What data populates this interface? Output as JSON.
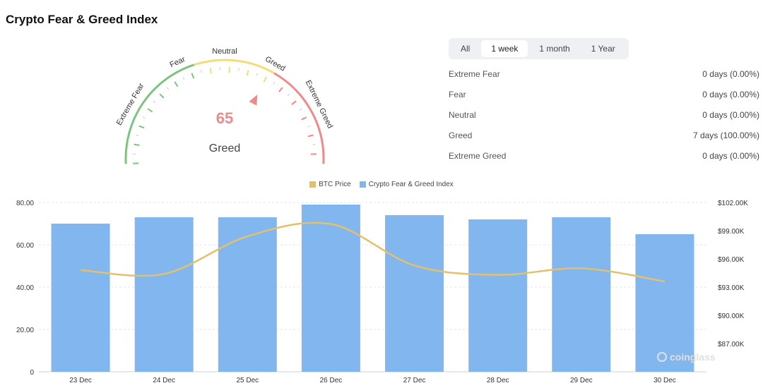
{
  "page": {
    "title": "Crypto Fear & Greed Index"
  },
  "gauge": {
    "value": "65",
    "level": 65,
    "status": "Greed",
    "bands": [
      "Extreme Fear",
      "Fear",
      "Neutral",
      "Greed",
      "Extreme Greed"
    ],
    "colors": {
      "green": "#7cc47f",
      "yellow": "#f5dc7a",
      "red": "#ee8a8a",
      "value_text": "#e98c8c",
      "tick_gray": "#c9c9c9"
    }
  },
  "period_tabs": [
    {
      "label": "All",
      "active": false
    },
    {
      "label": "1 week",
      "active": true
    },
    {
      "label": "1 month",
      "active": false
    },
    {
      "label": "1 Year",
      "active": false
    }
  ],
  "stats": [
    {
      "label": "Extreme Fear",
      "value": "0 days (0.00%)"
    },
    {
      "label": "Fear",
      "value": "0 days (0.00%)"
    },
    {
      "label": "Neutral",
      "value": "0 days (0.00%)"
    },
    {
      "label": "Greed",
      "value": "7 days (100.00%)"
    },
    {
      "label": "Extreme Greed",
      "value": "0 days (0.00%)"
    }
  ],
  "chart_data": {
    "type": "bar",
    "categories": [
      "23 Dec",
      "24 Dec",
      "25 Dec",
      "26 Dec",
      "27 Dec",
      "28 Dec",
      "29 Dec",
      "30 Dec"
    ],
    "series": [
      {
        "name": "Crypto Fear & Greed Index",
        "type": "bar",
        "color": "#82b6ee",
        "axis": "left",
        "values": [
          70,
          73,
          73,
          79,
          74,
          72,
          73,
          65
        ]
      },
      {
        "name": "BTC Price",
        "type": "line",
        "color": "#e3c06c",
        "axis": "right",
        "values": [
          94.8,
          94.4,
          98.4,
          99.7,
          95.3,
          94.3,
          95.0,
          93.6
        ]
      }
    ],
    "left_ticks": [
      "0",
      "20.00",
      "40.00",
      "60.00",
      "80.00"
    ],
    "left_range": [
      0,
      80
    ],
    "right_ticks": [
      "$87.00K",
      "$90.00K",
      "$93.00K",
      "$96.00K",
      "$99.00K",
      "$102.00K"
    ],
    "right_range": [
      84,
      102
    ],
    "legend_position": "top-center",
    "grid": "horizontal dashed"
  },
  "watermark": {
    "text": "coinglass"
  }
}
